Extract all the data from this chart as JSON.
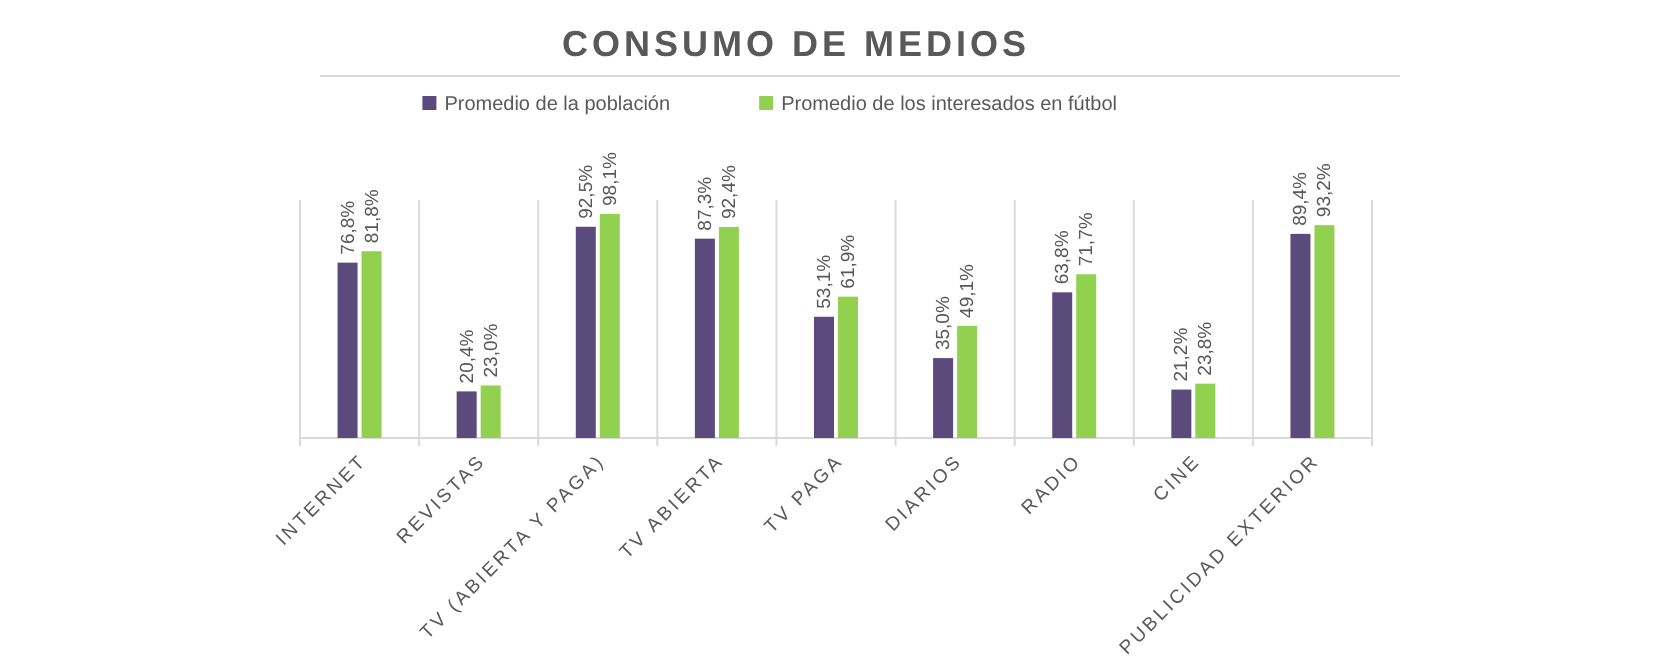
{
  "chart_data": {
    "type": "bar",
    "title": "CONSUMO DE MEDIOS",
    "categories": [
      "INTERNET",
      "REVISTAS",
      "TV (ABIERTA Y PAGA)",
      "TV ABIERTA",
      "TV PAGA",
      "DIARIOS",
      "RADIO",
      "CINE",
      "PUBLICIDAD EXTERIOR"
    ],
    "series": [
      {
        "name": "Promedio de la población",
        "color": "#5b4a7c",
        "values": [
          76.8,
          20.4,
          92.5,
          87.3,
          53.1,
          35.0,
          63.8,
          21.2,
          89.4
        ],
        "value_labels": [
          "76,8%",
          "20,4%",
          "92,5%",
          "87,3%",
          "53,1%",
          "35,0%",
          "63,8%",
          "21,2%",
          "89,4%"
        ]
      },
      {
        "name": "Promedio de los interesados en fútbol",
        "color": "#92d050",
        "values": [
          81.8,
          23.0,
          98.1,
          92.4,
          61.9,
          49.1,
          71.7,
          23.8,
          93.2
        ],
        "value_labels": [
          "81,8%",
          "23,0%",
          "98,1%",
          "92,4%",
          "61,9%",
          "49,1%",
          "71,7%",
          "23,8%",
          "93,2%"
        ]
      }
    ],
    "grid": "x",
    "legend": "top"
  }
}
